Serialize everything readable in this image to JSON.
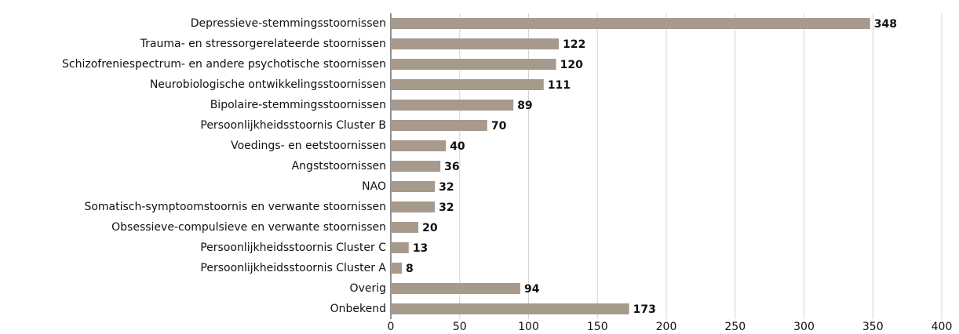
{
  "chart_data": {
    "type": "bar",
    "orientation": "horizontal",
    "categories": [
      "Depressieve-stemmingsstoornissen",
      "Trauma- en stressorgerelateerde stoornissen",
      "Schizofreniespectrum- en andere psychotische stoornissen",
      "Neurobiologische ontwikkelingsstoornissen",
      "Bipolaire-stemmingsstoornissen",
      "Persoonlijkheidsstoornis Cluster B",
      "Voedings- en eetstoornissen",
      "Angststoornissen",
      "NAO",
      "Somatisch-symptoomstoornis en verwante stoornissen",
      "Obsessieve-compulsieve en verwante stoornissen",
      "Persoonlijkheidsstoornis Cluster C",
      "Persoonlijkheidsstoornis Cluster A",
      "Overig",
      "Onbekend"
    ],
    "values": [
      348,
      122,
      120,
      111,
      89,
      70,
      40,
      36,
      32,
      32,
      20,
      13,
      8,
      94,
      173
    ],
    "color": "#a79a8d",
    "xlim": [
      0,
      400
    ],
    "xticks": [
      0,
      50,
      100,
      150,
      200,
      250,
      300,
      350,
      400
    ],
    "grid": true
  }
}
